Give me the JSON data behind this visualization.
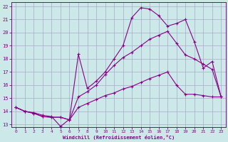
{
  "title": "",
  "xlabel": "Windchill (Refroidissement éolien,°C)",
  "ylabel": "",
  "bg_color": "#cce8e8",
  "grid_color": "#aaaacc",
  "line_color": "#880088",
  "xlim": [
    -0.5,
    23.5
  ],
  "ylim": [
    12.8,
    22.3
  ],
  "xticks": [
    0,
    1,
    2,
    3,
    4,
    5,
    6,
    7,
    8,
    9,
    10,
    11,
    12,
    13,
    14,
    15,
    16,
    17,
    18,
    19,
    20,
    21,
    22,
    23
  ],
  "yticks": [
    13,
    14,
    15,
    16,
    17,
    18,
    19,
    20,
    21,
    22
  ],
  "curve1_x": [
    0,
    1,
    2,
    3,
    4,
    5,
    6,
    7,
    8,
    9,
    10,
    11,
    12,
    13,
    14,
    15,
    16,
    17,
    18,
    19,
    20,
    21,
    22,
    23
  ],
  "curve1_y": [
    14.3,
    14.0,
    13.9,
    13.7,
    13.6,
    12.85,
    13.4,
    18.35,
    15.75,
    16.3,
    17.0,
    18.0,
    19.0,
    21.15,
    21.9,
    21.8,
    21.3,
    20.5,
    20.7,
    21.0,
    19.3,
    17.3,
    17.8,
    15.1
  ],
  "curve2_x": [
    0,
    1,
    2,
    3,
    4,
    5,
    6,
    7,
    8,
    9,
    10,
    11,
    12,
    13,
    14,
    15,
    16,
    17,
    18,
    19,
    20,
    21,
    22,
    23
  ],
  "curve2_y": [
    14.3,
    14.0,
    13.85,
    13.6,
    13.55,
    13.55,
    13.35,
    15.1,
    15.5,
    16.0,
    16.8,
    17.5,
    18.1,
    18.5,
    19.0,
    19.5,
    19.8,
    20.1,
    19.2,
    18.3,
    18.0,
    17.6,
    17.2,
    15.1
  ],
  "curve3_x": [
    0,
    1,
    2,
    3,
    4,
    5,
    6,
    7,
    8,
    9,
    10,
    11,
    12,
    13,
    14,
    15,
    16,
    17,
    18,
    19,
    20,
    21,
    22,
    23
  ],
  "curve3_y": [
    14.3,
    14.0,
    13.85,
    13.6,
    13.55,
    13.55,
    13.35,
    14.3,
    14.6,
    14.9,
    15.2,
    15.4,
    15.7,
    15.9,
    16.2,
    16.5,
    16.75,
    17.0,
    16.0,
    15.3,
    15.3,
    15.2,
    15.1,
    15.1
  ]
}
